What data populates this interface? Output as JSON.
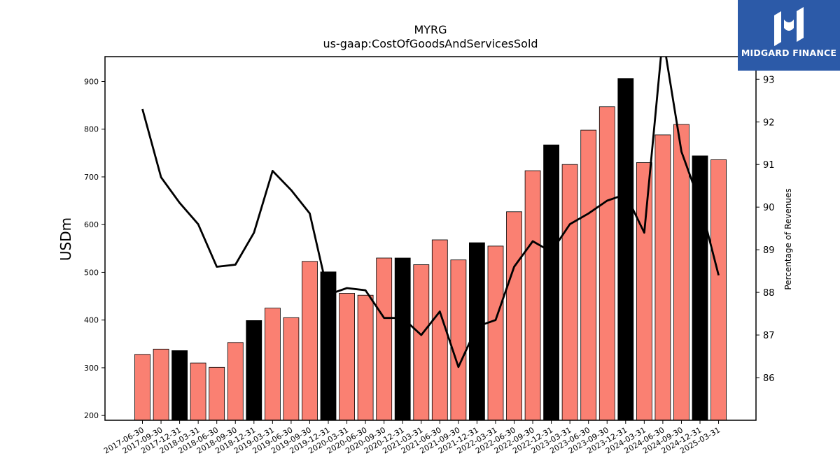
{
  "header": {
    "ticker": "MYRG",
    "metric": "us-gaap:CostOfGoodsAndServicesSold"
  },
  "logo": {
    "text": "MIDGARD FINANCE",
    "icon": "midgard-logo-icon",
    "color": "#2c5aa8"
  },
  "chart_data": {
    "type": "bar",
    "ylabel_left": "USDm",
    "ylabel_right": "Percentage of Revenues",
    "ylim_left": [
      190,
      952
    ],
    "ylim_right": [
      85,
      93.53
    ],
    "yticks_left": [
      200,
      300,
      400,
      500,
      600,
      700,
      800,
      900
    ],
    "yticks_right": [
      86,
      87,
      88,
      89,
      90,
      91,
      92,
      93
    ],
    "grid": false,
    "colors": {
      "quarter_bar": "#fa8072",
      "year_end_bar": "#000000",
      "line": "#000000"
    },
    "categories": [
      "2017-06-30",
      "2017-09-30",
      "2017-12-31",
      "2018-03-31",
      "2018-06-30",
      "2018-09-30",
      "2018-12-31",
      "2019-03-31",
      "2019-06-30",
      "2019-09-30",
      "2019-12-31",
      "2020-03-31",
      "2020-06-30",
      "2020-09-30",
      "2020-12-31",
      "2021-03-31",
      "2021-06-30",
      "2021-09-30",
      "2021-12-31",
      "2022-03-31",
      "2022-06-30",
      "2022-09-30",
      "2022-12-31",
      "2023-03-31",
      "2023-06-30",
      "2023-09-30",
      "2023-12-31",
      "2024-03-31",
      "2024-06-30",
      "2024-09-30",
      "2024-12-31",
      "2025-03-31"
    ],
    "series": [
      {
        "kind": "bar",
        "values": [
          328,
          339,
          336,
          310,
          301,
          353,
          399,
          425,
          405,
          523,
          501,
          456,
          452,
          530,
          530,
          516,
          568,
          526,
          562,
          555,
          627,
          713,
          767,
          726,
          798,
          847,
          906,
          730,
          788,
          810,
          744,
          736
        ],
        "year_end": [
          false,
          false,
          true,
          false,
          false,
          false,
          true,
          false,
          false,
          false,
          true,
          false,
          false,
          false,
          true,
          false,
          false,
          false,
          true,
          false,
          false,
          false,
          true,
          false,
          false,
          false,
          true,
          false,
          false,
          false,
          true,
          false
        ]
      },
      {
        "kind": "line",
        "axis": "right",
        "values": [
          92.3,
          90.7,
          90.1,
          89.6,
          88.6,
          88.65,
          89.4,
          90.85,
          90.4,
          89.85,
          87.95,
          88.1,
          88.05,
          87.4,
          87.4,
          87.0,
          87.55,
          86.25,
          87.2,
          87.35,
          88.6,
          89.2,
          88.95,
          89.6,
          89.85,
          90.15,
          90.3,
          89.4,
          94.0,
          91.3,
          90.1,
          88.4
        ]
      }
    ]
  }
}
